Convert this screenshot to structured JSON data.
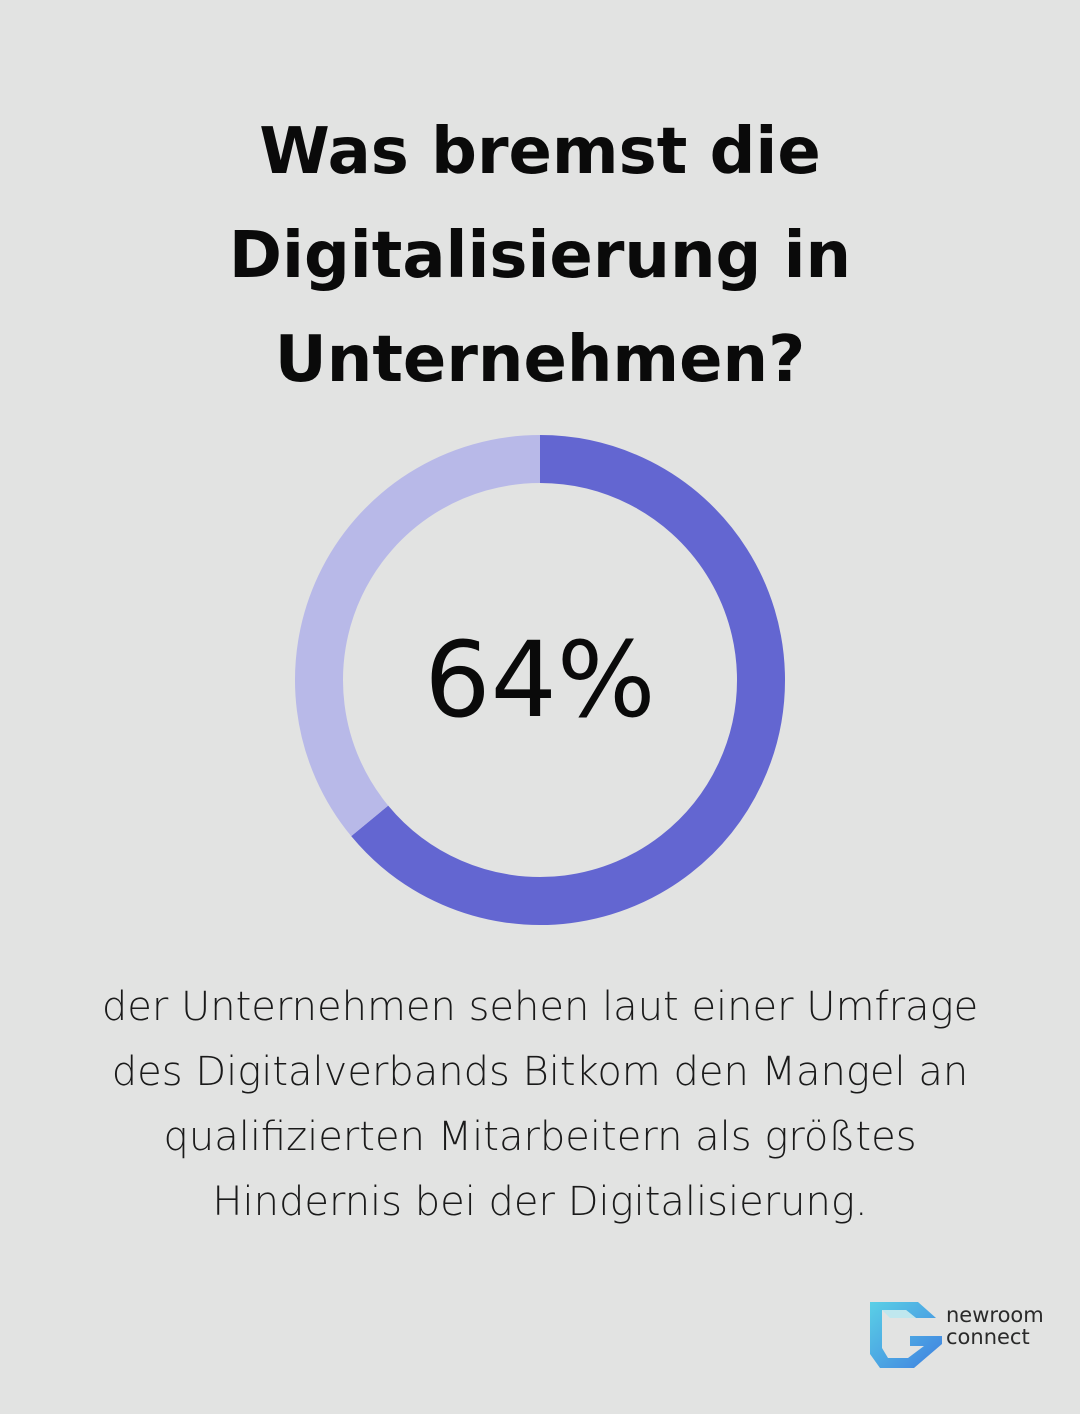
{
  "title_lines": [
    "Was bremst die",
    "Digitalisierung in",
    "Unternehmen?"
  ],
  "description_lines": [
    "der Unternehmen sehen laut einer Umfrage",
    "des Digitalverbands Bitkom den Mangel an",
    "qualifizierten Mitarbeitern als größtes",
    "Hindernis bei der Digitalisierung."
  ],
  "logo": {
    "line1": "newroom",
    "line2": "connect",
    "icon": "newroom-connect-logo-icon",
    "colors": [
      "#5ad0e6",
      "#3f7fe0"
    ]
  },
  "colors": {
    "background": "#e2e3e2",
    "primary": "#6366d1",
    "remainder": "#b8b9e8"
  },
  "chart_data": {
    "type": "pie",
    "style": "donut",
    "center_label": "64%",
    "values": [
      64,
      36
    ],
    "value_unit": "%",
    "colors": [
      "#6366d1",
      "#b8b9e8"
    ]
  }
}
